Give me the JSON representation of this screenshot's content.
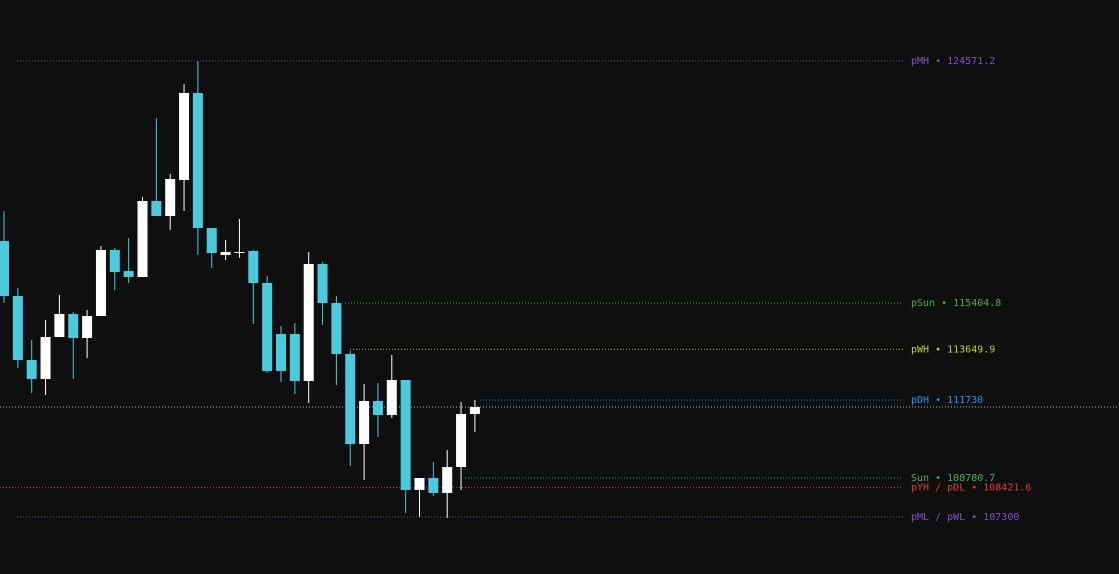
{
  "chart_data": {
    "type": "candlestick",
    "ylim": [
      105141,
      126882
    ],
    "up_color": "#ffffff",
    "down_color": "#4cc9dd",
    "candles": [
      {
        "open": 117753,
        "high": 118890,
        "low": 115405,
        "close": 115670
      },
      {
        "open": 115670,
        "high": 115973,
        "low": 112943,
        "close": 113246
      },
      {
        "open": 113246,
        "high": 114004,
        "low": 111996,
        "close": 112527
      },
      {
        "open": 112527,
        "high": 114761,
        "low": 111921,
        "close": 114117
      },
      {
        "open": 114117,
        "high": 115708,
        "low": 114117,
        "close": 114989
      },
      {
        "open": 114989,
        "high": 115064,
        "low": 112527,
        "close": 114080
      },
      {
        "open": 114080,
        "high": 115140,
        "low": 113322,
        "close": 114913
      },
      {
        "open": 114913,
        "high": 117564,
        "low": 114913,
        "close": 117413
      },
      {
        "open": 117413,
        "high": 117488,
        "low": 115898,
        "close": 116579
      },
      {
        "open": 116617,
        "high": 117867,
        "low": 116163,
        "close": 116390
      },
      {
        "open": 116390,
        "high": 119420,
        "low": 116390,
        "close": 119269
      },
      {
        "open": 119269,
        "high": 122412,
        "low": 118701,
        "close": 118701
      },
      {
        "open": 118701,
        "high": 120291,
        "low": 118170,
        "close": 120102
      },
      {
        "open": 120064,
        "high": 123700,
        "low": 118890,
        "close": 123359
      },
      {
        "open": 123359,
        "high": 124571,
        "low": 117223,
        "close": 118246
      },
      {
        "open": 118246,
        "high": 118246,
        "low": 116731,
        "close": 117299
      },
      {
        "open": 117223,
        "high": 117791,
        "low": 117034,
        "close": 117337
      },
      {
        "open": 117299,
        "high": 118587,
        "low": 117110,
        "close": 117337
      },
      {
        "open": 117375,
        "high": 117413,
        "low": 114610,
        "close": 116163
      },
      {
        "open": 116163,
        "high": 116428,
        "low": 112754,
        "close": 112830
      },
      {
        "open": 114231,
        "high": 114534,
        "low": 112413,
        "close": 112830
      },
      {
        "open": 114231,
        "high": 114648,
        "low": 111958,
        "close": 112451
      },
      {
        "open": 112451,
        "high": 117337,
        "low": 111618,
        "close": 116882
      },
      {
        "open": 116882,
        "high": 116958,
        "low": 114572,
        "close": 115405
      },
      {
        "open": 115405,
        "high": 115670,
        "low": 112299,
        "close": 113474
      },
      {
        "open": 113474,
        "high": 113587,
        "low": 109232,
        "close": 110065
      },
      {
        "open": 110065,
        "high": 112337,
        "low": 108701,
        "close": 111693
      },
      {
        "open": 111693,
        "high": 112375,
        "low": 110330,
        "close": 111163
      },
      {
        "open": 111163,
        "high": 113436,
        "low": 111050,
        "close": 112489
      },
      {
        "open": 112489,
        "high": 112489,
        "low": 107451,
        "close": 108323
      },
      {
        "open": 108323,
        "high": 108777,
        "low": 107300,
        "close": 108777
      },
      {
        "open": 108777,
        "high": 109383,
        "low": 108095,
        "close": 108209
      },
      {
        "open": 108209,
        "high": 109838,
        "low": 107262,
        "close": 109194
      },
      {
        "open": 109194,
        "high": 111656,
        "low": 108323,
        "close": 111201
      },
      {
        "open": 111201,
        "high": 111731,
        "low": 110519,
        "close": 111466
      }
    ],
    "current_price": {
      "value": 111466,
      "color": "#e0e0e0"
    },
    "levels": [
      {
        "value": 124571.2,
        "label": "pMH • 124571.2",
        "color": "#7e57c2"
      },
      {
        "value": 115404.8,
        "label": "pSun • 115404.8",
        "color": "#4caf50"
      },
      {
        "value": 113649.9,
        "label": "pWH • 113649.9",
        "color": "#c0d02f"
      },
      {
        "value": 111730,
        "label": "pDH • 111730",
        "color": "#2196f3"
      },
      {
        "value": 108780.7,
        "label": "Sun • 108780.7",
        "color": "#4caf50"
      },
      {
        "value": 108421.6,
        "label": "pYH / pDL • 108421.6",
        "color": "#e53935"
      },
      {
        "value": 107300,
        "label": "pML / pWL • 107300",
        "color": "#7e57c2"
      }
    ]
  }
}
